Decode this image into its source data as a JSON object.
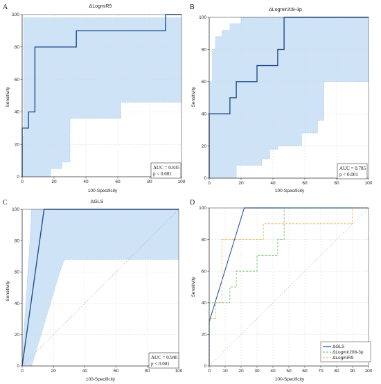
{
  "figure": {
    "panel_letters": [
      "A",
      "B",
      "C",
      "D"
    ]
  },
  "chart_data": [
    {
      "panel": "A",
      "type": "line",
      "title": "ΔLogmiR9",
      "xlabel": "100-Specificity",
      "ylabel": "Sensitivity",
      "xlim": [
        0,
        100
      ],
      "ylim": [
        0,
        100
      ],
      "xticks": [
        0,
        20,
        40,
        60,
        80,
        100
      ],
      "yticks": [
        0,
        20,
        40,
        60,
        80,
        100
      ],
      "grid": true,
      "auc_text": "AUC = 0.835",
      "p_text": "p < 0.001",
      "series": [
        {
          "role": "roc",
          "color": "#1f4e8c",
          "points": [
            [
              0,
              0
            ],
            [
              0,
              30
            ],
            [
              4,
              30
            ],
            [
              4,
              40
            ],
            [
              8,
              40
            ],
            [
              8,
              80
            ],
            [
              34,
              80
            ],
            [
              34,
              90
            ],
            [
              90,
              90
            ],
            [
              90,
              100
            ],
            [
              100,
              100
            ]
          ]
        },
        {
          "role": "ci_upper",
          "color": "#9fc5ec",
          "points": [
            [
              0,
              0
            ],
            [
              0,
              25
            ],
            [
              1,
              25
            ],
            [
              1,
              98
            ],
            [
              100,
              98
            ]
          ]
        },
        {
          "role": "ci_lower",
          "color": "#9fc5ec",
          "points": [
            [
              0,
              0
            ],
            [
              18,
              0
            ],
            [
              18,
              5
            ],
            [
              25,
              5
            ],
            [
              25,
              9
            ],
            [
              30,
              9
            ],
            [
              30,
              36
            ],
            [
              62,
              36
            ],
            [
              62,
              46
            ],
            [
              100,
              46
            ]
          ]
        }
      ]
    },
    {
      "panel": "B",
      "type": "line",
      "title": "ΔLogmir208-3p",
      "xlabel": "100-Specificity",
      "ylabel": "Sensitivity",
      "xlim": [
        0,
        100
      ],
      "ylim": [
        0,
        100
      ],
      "xticks": [
        0,
        20,
        40,
        60,
        80,
        100
      ],
      "yticks": [
        0,
        20,
        40,
        60,
        80,
        100
      ],
      "grid": true,
      "auc_text": "AUC = 0.785",
      "p_text": "p < 0.001",
      "series": [
        {
          "role": "roc",
          "color": "#1f4e8c",
          "points": [
            [
              0,
              0
            ],
            [
              0,
              40
            ],
            [
              13,
              40
            ],
            [
              13,
              50
            ],
            [
              17,
              50
            ],
            [
              17,
              60
            ],
            [
              30,
              60
            ],
            [
              30,
              70
            ],
            [
              43,
              70
            ],
            [
              43,
              80
            ],
            [
              47,
              80
            ],
            [
              47,
              100
            ],
            [
              100,
              100
            ]
          ]
        },
        {
          "role": "ci_upper",
          "color": "#9fc5ec",
          "points": [
            [
              0,
              0
            ],
            [
              0,
              60
            ],
            [
              2,
              60
            ],
            [
              2,
              80
            ],
            [
              4,
              80
            ],
            [
              4,
              88
            ],
            [
              8,
              88
            ],
            [
              8,
              92
            ],
            [
              13,
              92
            ],
            [
              13,
              96
            ],
            [
              20,
              96
            ],
            [
              20,
              100
            ],
            [
              100,
              100
            ]
          ]
        },
        {
          "role": "ci_lower",
          "color": "#9fc5ec",
          "points": [
            [
              0,
              0
            ],
            [
              17,
              0
            ],
            [
              17,
              8
            ],
            [
              33,
              8
            ],
            [
              33,
              12
            ],
            [
              38,
              12
            ],
            [
              38,
              18
            ],
            [
              43,
              18
            ],
            [
              43,
              20
            ],
            [
              58,
              20
            ],
            [
              58,
              28
            ],
            [
              68,
              28
            ],
            [
              68,
              36
            ],
            [
              72,
              36
            ],
            [
              72,
              60
            ],
            [
              100,
              60
            ]
          ]
        }
      ]
    },
    {
      "panel": "C",
      "type": "line",
      "title": "ΔGLS",
      "xlabel": "100-Specificity",
      "ylabel": "Sensitivity",
      "xlim": [
        0,
        100
      ],
      "ylim": [
        0,
        100
      ],
      "xticks": [
        0,
        20,
        40,
        60,
        80,
        100
      ],
      "yticks": [
        0,
        20,
        40,
        60,
        80,
        100
      ],
      "grid": true,
      "auc_text": "AUC = 0.940",
      "p_text": "p < 0.001",
      "series": [
        {
          "role": "roc",
          "color": "#1f4e8c",
          "points": [
            [
              0,
              0
            ],
            [
              14,
              100
            ],
            [
              100,
              100
            ]
          ]
        },
        {
          "role": "ci_upper",
          "color": "#9fc5ec",
          "points": [
            [
              0,
              0
            ],
            [
              1,
              20
            ],
            [
              3,
              50
            ],
            [
              5,
              80
            ],
            [
              6,
              100
            ],
            [
              100,
              100
            ]
          ]
        },
        {
          "role": "ci_lower",
          "color": "#9fc5ec",
          "points": [
            [
              0,
              0
            ],
            [
              6,
              0
            ],
            [
              12,
              20
            ],
            [
              18,
              40
            ],
            [
              24,
              60
            ],
            [
              27,
              68
            ],
            [
              100,
              68
            ]
          ]
        },
        {
          "role": "reference",
          "color": "#b0b0b0",
          "points": [
            [
              0,
              0
            ],
            [
              100,
              100
            ]
          ]
        }
      ]
    },
    {
      "panel": "D",
      "type": "line",
      "title": "",
      "xlabel": "100-Specificity",
      "ylabel": "Sensitivity",
      "xlim": [
        0,
        100
      ],
      "ylim": [
        0,
        100
      ],
      "xticks": [
        0,
        10,
        20,
        30,
        40,
        50,
        60,
        70,
        80,
        90,
        100
      ],
      "yticks": [
        0,
        20,
        40,
        60,
        80,
        100
      ],
      "grid": true,
      "legend_position": "bottom-right",
      "series": [
        {
          "name": "ΔGLS",
          "color": "#2e63b8",
          "dash": "",
          "points": [
            [
              0,
              0
            ],
            [
              0,
              28
            ],
            [
              22,
              100
            ],
            [
              100,
              100
            ]
          ]
        },
        {
          "name": "ΔLogmir208-3p",
          "color": "#5cb85c",
          "dash": "3,2",
          "points": [
            [
              0,
              0
            ],
            [
              0,
              40
            ],
            [
              13,
              40
            ],
            [
              13,
              50
            ],
            [
              17,
              50
            ],
            [
              17,
              60
            ],
            [
              30,
              60
            ],
            [
              30,
              70
            ],
            [
              43,
              70
            ],
            [
              43,
              80
            ],
            [
              47,
              80
            ],
            [
              47,
              100
            ],
            [
              100,
              100
            ]
          ]
        },
        {
          "name": "ΔLogmiR9",
          "color": "#f0ad4e",
          "dash": "3,2",
          "points": [
            [
              0,
              0
            ],
            [
              0,
              30
            ],
            [
              4,
              30
            ],
            [
              4,
              40
            ],
            [
              8,
              40
            ],
            [
              8,
              80
            ],
            [
              34,
              80
            ],
            [
              34,
              90
            ],
            [
              90,
              90
            ],
            [
              90,
              100
            ],
            [
              100,
              100
            ]
          ]
        },
        {
          "name": "",
          "color": "#bdbdbd",
          "dash": "2,2",
          "points": [
            [
              0,
              0
            ],
            [
              100,
              100
            ]
          ]
        }
      ]
    }
  ]
}
